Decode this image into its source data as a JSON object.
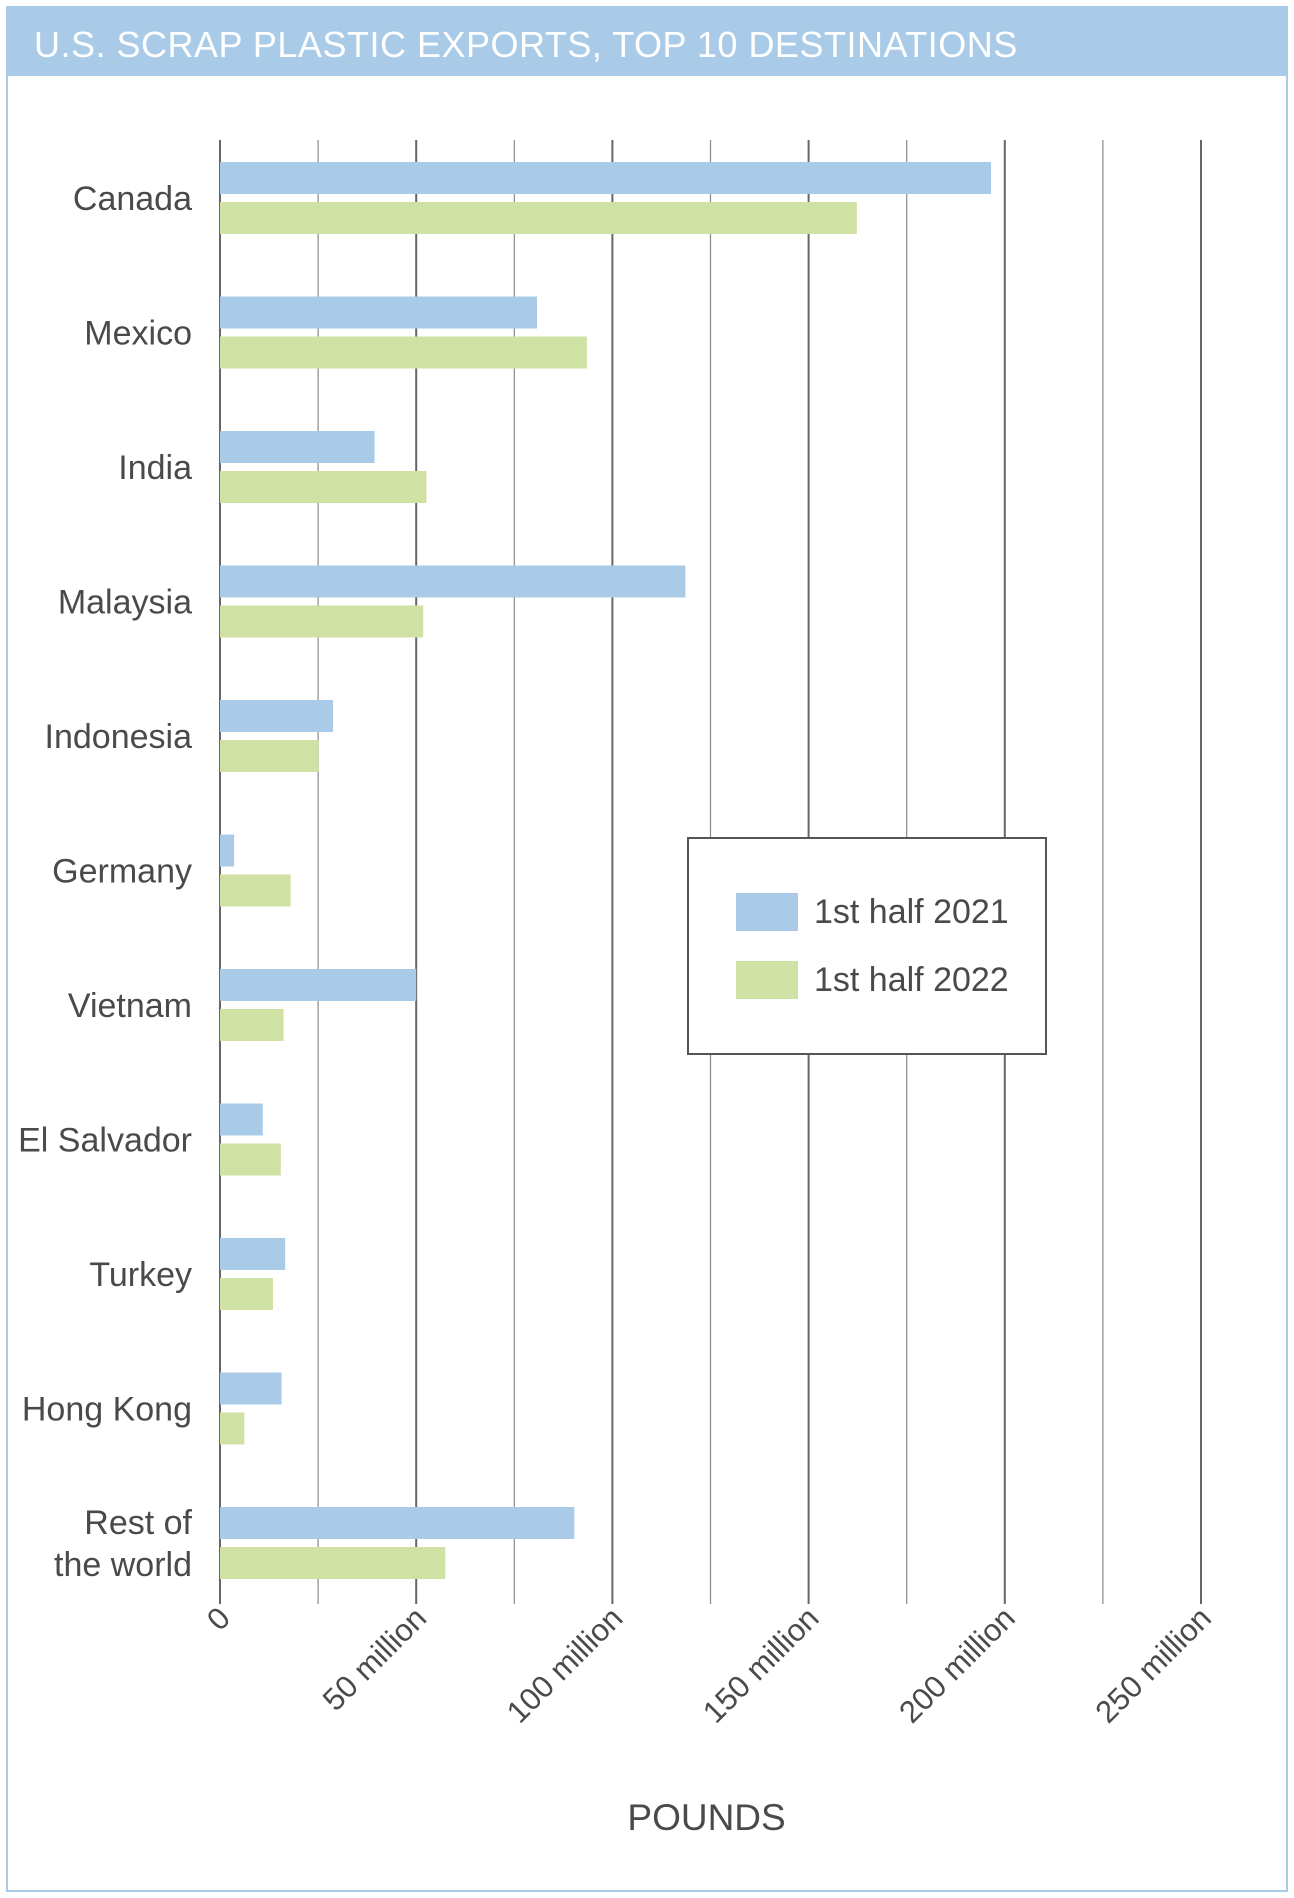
{
  "page": {
    "title": "U.S. SCRAP PLASTIC EXPORTS, TOP 10 DESTINATIONS"
  },
  "colors": {
    "title_bar": "#a9cbe8",
    "frame_border": "#a9cbe8",
    "series_2021": "#a9cbe8",
    "series_2022": "#cfe2a4",
    "gridline": "#555555",
    "text": "#4a4a4a"
  },
  "chart_data": {
    "type": "bar",
    "orientation": "horizontal",
    "title": "U.S. SCRAP PLASTIC EXPORTS, TOP 10 DESTINATIONS",
    "xlabel": "POUNDS",
    "ylabel": "",
    "xlim": [
      0,
      250
    ],
    "x_units": "million pounds",
    "grid": true,
    "legend_position": "center-right",
    "ticks": [
      {
        "value": 0,
        "label": "0"
      },
      {
        "value": 50,
        "label": "50 million"
      },
      {
        "value": 100,
        "label": "100 million"
      },
      {
        "value": 150,
        "label": "150 million"
      },
      {
        "value": 200,
        "label": "200 million"
      },
      {
        "value": 250,
        "label": "250 million"
      }
    ],
    "categories": [
      [
        "Canada"
      ],
      [
        "Mexico"
      ],
      [
        "India"
      ],
      [
        "Malaysia"
      ],
      [
        "Indonesia"
      ],
      [
        "Germany"
      ],
      [
        "Vietnam"
      ],
      [
        "El Salvador"
      ],
      [
        "Turkey"
      ],
      [
        "Hong Kong"
      ],
      [
        "Rest of",
        "the world"
      ]
    ],
    "series": [
      {
        "name": "1st half 2021",
        "color": "#a9cbe8",
        "values": [
          196.5,
          80.8,
          39.4,
          118.6,
          28.8,
          3.6,
          50.0,
          10.9,
          16.6,
          15.7,
          90.3
        ]
      },
      {
        "name": "1st half 2022",
        "color": "#cfe2a4",
        "values": [
          162.3,
          93.5,
          52.6,
          51.8,
          25.1,
          18.0,
          16.2,
          15.5,
          13.5,
          6.2,
          57.4
        ]
      }
    ]
  }
}
